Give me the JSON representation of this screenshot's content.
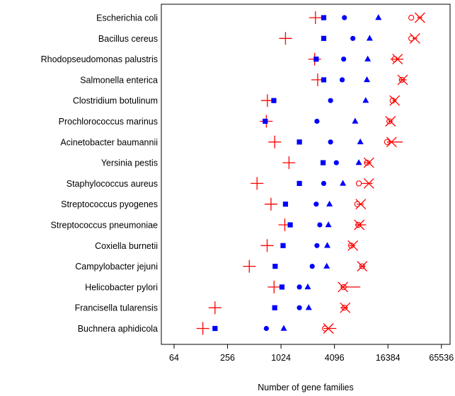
{
  "chart_data": {
    "type": "scatter",
    "orientation": "horizontal",
    "xlabel": "Number of gene families",
    "xscale": "log2",
    "xlim": [
      46,
      82000
    ],
    "xticks": [
      64,
      256,
      1024,
      4096,
      16384,
      65536
    ],
    "xtick_labels": [
      "64",
      "256",
      "1024",
      "4096",
      "16384",
      "65536"
    ],
    "grid": false,
    "legend": "none",
    "categories": [
      "Escherichia coli",
      "Bacillus cereus",
      "Rhodopseudomonas palustris",
      "Salmonella enterica",
      "Clostridium botulinum",
      "Prochlorococcus marinus",
      "Acinetobacter baumannii",
      "Yersinia pestis",
      "Staphylococcus aureus",
      "Streptococcus pyogenes",
      "Streptococcus pneumoniae",
      "Coxiella burnetii",
      "Campylobacter jejuni",
      "Helicobacter pylori",
      "Francisella tularensis",
      "Buchnera aphidicola"
    ],
    "series": [
      {
        "marker": "plus",
        "color": "#ff0000",
        "values": [
          2500,
          1150,
          2450,
          2650,
          720,
          700,
          870,
          1260,
          550,
          790,
          1130,
          715,
          450,
          855,
          185,
          135
        ]
      },
      {
        "marker": "square",
        "color": "#0000ff",
        "values": [
          3100,
          3100,
          2550,
          3100,
          850,
          680,
          1650,
          3050,
          1650,
          1150,
          1300,
          1080,
          880,
          1050,
          870,
          185
        ]
      },
      {
        "marker": "circle",
        "color": "#0000ff",
        "values": [
          5300,
          6600,
          5200,
          5000,
          3700,
          2600,
          3700,
          4300,
          3100,
          2550,
          2800,
          2600,
          2300,
          1650,
          1650,
          700
        ]
      },
      {
        "marker": "triangle",
        "color": "#0000ff",
        "values": [
          12800,
          10200,
          9700,
          9500,
          9200,
          7000,
          8000,
          7700,
          5100,
          3600,
          3500,
          3400,
          3350,
          2050,
          2100,
          1100
        ]
      },
      {
        "marker": "circle-open",
        "color": "#ff0000",
        "values": [
          30000,
          30000,
          19500,
          23500,
          18500,
          17000,
          16000,
          9500,
          7700,
          7400,
          7600,
          6300,
          8400,
          5200,
          5300,
          3200
        ]
      },
      {
        "marker": "cross",
        "color": "#ff0000",
        "values": [
          37500,
          33000,
          21000,
          24000,
          19500,
          17500,
          18000,
          10000,
          10000,
          8100,
          7800,
          6600,
          8400,
          5100,
          5400,
          3500
        ],
        "range": [
          [
            35000,
            40000
          ],
          [
            31000,
            35000
          ],
          [
            17500,
            24500
          ],
          [
            22000,
            26500
          ],
          [
            18500,
            20500
          ],
          [
            16500,
            18500
          ],
          [
            16000,
            24000
          ],
          [
            9000,
            10700
          ],
          [
            8300,
            11000
          ],
          [
            7300,
            8800
          ],
          [
            7000,
            9300
          ],
          [
            6000,
            7000
          ],
          [
            8000,
            9100
          ],
          [
            4800,
            8000
          ],
          [
            4800,
            5800
          ],
          [
            3100,
            4300
          ]
        ]
      }
    ]
  }
}
